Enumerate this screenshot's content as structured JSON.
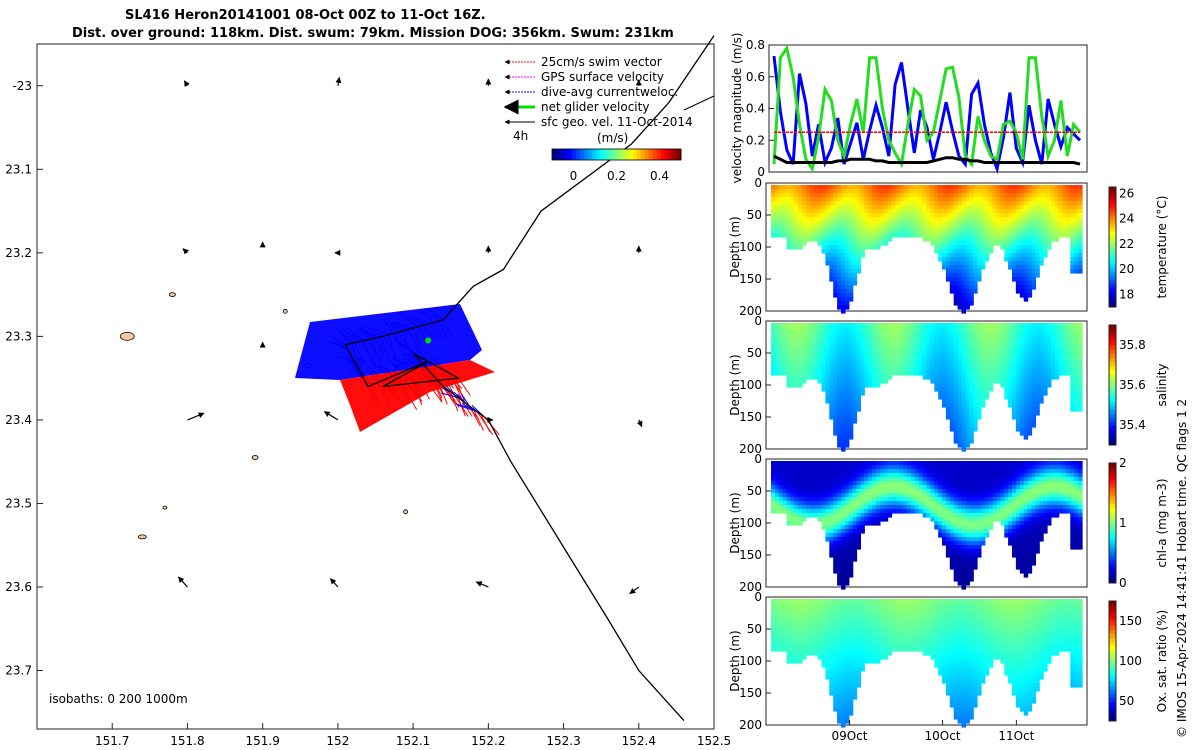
{
  "title": {
    "line1": "SL416 Heron20141001 08-Oct 00Z to 11-Oct 16Z.",
    "line2": "Dist. over ground: 118km. Dist. swum: 79km. Mission DOG: 356km. Swum: 231km"
  },
  "credit": "© IMOS 15-Apr-2024 14:41:41 Hobart time. QC flags 1  2",
  "colors": {
    "swim": "#ff0000",
    "gps": "#ff00ff",
    "current": "#0000ff",
    "net": "#00dd00",
    "geo": "#000000",
    "coast": "#f6c8a0"
  },
  "chart_data": [
    {
      "type": "scatter",
      "name": "map",
      "xlim": [
        151.6,
        152.5
      ],
      "ylim": [
        -23.77,
        -22.95
      ],
      "xticks": [
        "151.7",
        "151.8",
        "151.9",
        "152",
        "152.1",
        "152.2",
        "152.3",
        "152.4",
        "152.5"
      ],
      "yticks": [
        "-23",
        "23.1",
        "23.2",
        "23.3",
        "23.4",
        "23.5",
        "23.6",
        "23.7"
      ],
      "legend": {
        "position": "top-right",
        "entries": [
          "25cm/s swim vector",
          "GPS surface velocity",
          "dive-avg currentweloc.",
          "net glider velocity",
          "sfc geo. vel. 11-Oct-2014"
        ],
        "time_label": "4h",
        "colorbar_unit": "(m/s)",
        "colorbar_ticks": [
          "0",
          "0.2",
          "0.4"
        ],
        "colorbar_range": [
          -0.1,
          0.5
        ]
      },
      "isobaths_label": "isobaths: 0   200  1000m",
      "track": [
        [
          152.5,
          -22.94
        ],
        [
          152.44,
          -23.02
        ],
        [
          152.39,
          -23.07
        ],
        [
          152.27,
          -23.15
        ],
        [
          152.22,
          -23.22
        ],
        [
          152.18,
          -23.24
        ],
        [
          152.14,
          -23.28
        ],
        [
          152.06,
          -23.3
        ],
        [
          152.01,
          -23.31
        ],
        [
          152.04,
          -23.36
        ],
        [
          152.12,
          -23.33
        ],
        [
          152.06,
          -23.36
        ],
        [
          152.16,
          -23.35
        ],
        [
          152.1,
          -23.32
        ],
        [
          152.14,
          -23.36
        ],
        [
          152.2,
          -23.4
        ],
        [
          152.23,
          -23.45
        ],
        [
          152.36,
          -23.64
        ],
        [
          152.4,
          -23.7
        ],
        [
          152.46,
          -23.76
        ]
      ],
      "geo_arrows": [
        [
          151.8,
          -23.0,
          -0.004,
          0.006
        ],
        [
          152.0,
          -23.0,
          0.002,
          0.01
        ],
        [
          152.2,
          -23.0,
          0.0,
          0.008
        ],
        [
          152.4,
          -23.0,
          0.0,
          0.007
        ],
        [
          151.9,
          -23.19,
          0.0,
          0.003
        ],
        [
          151.8,
          -23.2,
          -0.006,
          0.005
        ],
        [
          152.0,
          -23.2,
          -0.004,
          0.0
        ],
        [
          152.2,
          -23.2,
          0.0,
          0.008
        ],
        [
          152.4,
          -23.2,
          0.0,
          0.008
        ],
        [
          151.9,
          -23.31,
          0.0,
          0.003
        ],
        [
          151.8,
          -23.4,
          0.022,
          0.008
        ],
        [
          152.0,
          -23.4,
          -0.018,
          0.01
        ],
        [
          152.2,
          -23.4,
          0.006,
          0.0
        ],
        [
          152.4,
          -23.4,
          0.004,
          -0.008
        ],
        [
          151.8,
          -23.6,
          -0.012,
          0.012
        ],
        [
          152.0,
          -23.6,
          -0.01,
          0.01
        ],
        [
          152.2,
          -23.6,
          -0.016,
          0.006
        ],
        [
          152.4,
          -23.6,
          -0.012,
          -0.008
        ]
      ]
    },
    {
      "type": "line",
      "name": "velocity",
      "ylabel": "velocity magnitude (m/s)",
      "ylim": [
        0,
        0.8
      ],
      "yticks": [
        "0",
        "0.2",
        "0.4",
        "0.6",
        "0.8"
      ],
      "xlim": [
        0,
        48
      ],
      "swim_level": 0.25,
      "series": [
        {
          "name": "dive-avg current",
          "color": "#0000ff",
          "values": [
            0.73,
            0.38,
            0.14,
            0.05,
            0.62,
            0.43,
            0.1,
            0.3,
            0.06,
            0.15,
            0.34,
            0.05,
            0.18,
            0.31,
            0.08,
            0.26,
            0.42,
            0.28,
            0.1,
            0.55,
            0.69,
            0.4,
            0.12,
            0.39,
            0.28,
            0.08,
            0.25,
            0.44,
            0.26,
            0.1,
            0.05,
            0.49,
            0.56,
            0.3,
            0.12,
            0.02,
            0.22,
            0.5,
            0.15,
            0.06,
            0.42,
            0.2,
            0.05,
            0.46,
            0.3,
            0.16,
            0.28,
            0.24,
            0.2
          ]
        },
        {
          "name": "net glider velocity",
          "color": "#22dd22",
          "values": [
            0.05,
            0.72,
            0.78,
            0.6,
            0.3,
            0.08,
            0.02,
            0.22,
            0.52,
            0.45,
            0.2,
            0.1,
            0.3,
            0.46,
            0.25,
            0.72,
            0.72,
            0.4,
            0.2,
            0.12,
            0.05,
            0.3,
            0.52,
            0.48,
            0.2,
            0.25,
            0.45,
            0.65,
            0.66,
            0.47,
            0.1,
            0.05,
            0.35,
            0.2,
            0.1,
            0.08,
            0.3,
            0.32,
            0.25,
            0.08,
            0.72,
            0.72,
            0.35,
            0.1,
            0.2,
            0.45,
            0.1,
            0.3,
            0.25
          ]
        },
        {
          "name": "sfc geo. vel.",
          "color": "#000000",
          "values": [
            0.1,
            0.08,
            0.06,
            0.06,
            0.06,
            0.06,
            0.06,
            0.06,
            0.06,
            0.06,
            0.07,
            0.07,
            0.08,
            0.08,
            0.08,
            0.08,
            0.07,
            0.07,
            0.06,
            0.06,
            0.06,
            0.06,
            0.06,
            0.06,
            0.06,
            0.07,
            0.08,
            0.09,
            0.09,
            0.08,
            0.08,
            0.07,
            0.07,
            0.06,
            0.06,
            0.06,
            0.06,
            0.06,
            0.06,
            0.06,
            0.06,
            0.06,
            0.06,
            0.06,
            0.06,
            0.06,
            0.06,
            0.06,
            0.05
          ]
        },
        {
          "name": "swim",
          "color": "#ff0000",
          "values": [
            0.25,
            0.25
          ]
        }
      ]
    },
    {
      "type": "heatmap",
      "name": "temperature",
      "ylabel": "Depth (m)",
      "cbar_label": "temperature (°C)",
      "ylim": [
        0,
        200
      ],
      "yticks": [
        "0",
        "50",
        "100",
        "150",
        "200"
      ],
      "cbar_range": [
        17,
        26.5
      ],
      "cbar_ticks": [
        "18",
        "20",
        "22",
        "24",
        "26"
      ],
      "surface": 24.5,
      "bottom": 17.5
    },
    {
      "type": "heatmap",
      "name": "salinity",
      "ylabel": "Depth (m)",
      "cbar_label": "salinity",
      "ylim": [
        0,
        200
      ],
      "yticks": [
        "0",
        "50",
        "100",
        "150",
        "200"
      ],
      "cbar_range": [
        35.3,
        35.9
      ],
      "cbar_ticks": [
        "35.4",
        "35.6",
        "35.8"
      ],
      "surface": 35.58,
      "bottom": 35.45
    },
    {
      "type": "heatmap",
      "name": "chl-a",
      "ylabel": "Depth (m)",
      "cbar_label": "chl-a (mg m-3)",
      "ylim": [
        0,
        200
      ],
      "yticks": [
        "0",
        "50",
        "100",
        "150",
        "200"
      ],
      "cbar_range": [
        0,
        2
      ],
      "cbar_ticks": [
        "0",
        "1",
        "2"
      ],
      "surface": 0.1,
      "bottom": 0.2
    },
    {
      "type": "heatmap",
      "name": "oxygen",
      "ylabel": "Depth (m)",
      "cbar_label": "Ox. sat. ratio (%)",
      "ylim": [
        0,
        200
      ],
      "yticks": [
        "0",
        "50",
        "100",
        "150",
        "200"
      ],
      "cbar_range": [
        25,
        175
      ],
      "cbar_ticks": [
        "50",
        "100",
        "150"
      ],
      "surface": 105,
      "bottom": 85,
      "xticks": [
        "09Oct",
        "10Oct",
        "11Oct"
      ]
    }
  ]
}
